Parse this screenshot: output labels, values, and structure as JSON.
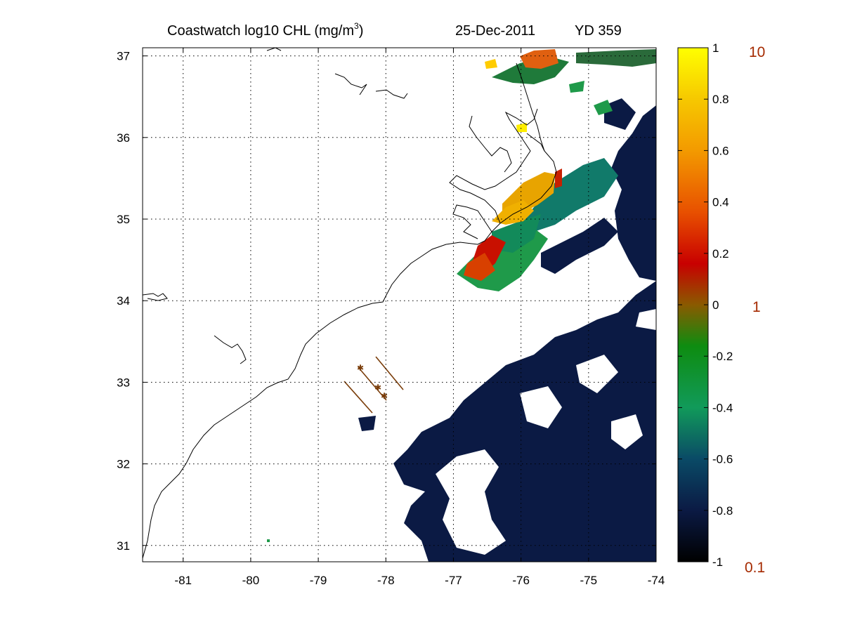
{
  "figure": {
    "title_main": "Coastwatch  log10  CHL (mg/m",
    "title_sup": "3",
    "title_close": ")",
    "date": "25-Dec-2011",
    "yearday": "YD 359"
  },
  "map": {
    "lon_range": [
      -81.6,
      -74.0
    ],
    "lat_range": [
      30.8,
      37.1
    ],
    "lon_ticks": [
      -81,
      -80,
      -79,
      -78,
      -77,
      -76,
      -75,
      -74
    ],
    "lat_ticks": [
      31,
      32,
      33,
      34,
      35,
      36,
      37
    ],
    "grid": true,
    "field": "log10 chlorophyll concentration",
    "features": [
      "coastline",
      "cloud-mask",
      "cruise-tracks"
    ]
  },
  "colorbar": {
    "range": [
      -1,
      1
    ],
    "ticks": [
      "1",
      "0.8",
      "0.6",
      "0.4",
      "0.2",
      "0",
      "-0.2",
      "-0.4",
      "-0.6",
      "-0.8",
      "-1"
    ],
    "right_labels": {
      "top": "10",
      "middle": "1",
      "bottom": "0.1"
    },
    "right_label_color": "#a52a00",
    "stops": [
      "#000000",
      "#0b1a44",
      "#0a4a66",
      "#119a5a",
      "#0e8c10",
      "#8a5a00",
      "#c80000",
      "#e85000",
      "#f39a00",
      "#f6c800",
      "#ffff00"
    ]
  },
  "colors": {
    "ocean_low": "#0b1a44",
    "ocean_mid": "#117a6a",
    "shelf_green": "#1f9a4a",
    "sound_orange": "#e0a000",
    "plume_red": "#c81000",
    "track": "#7a3d0a"
  }
}
